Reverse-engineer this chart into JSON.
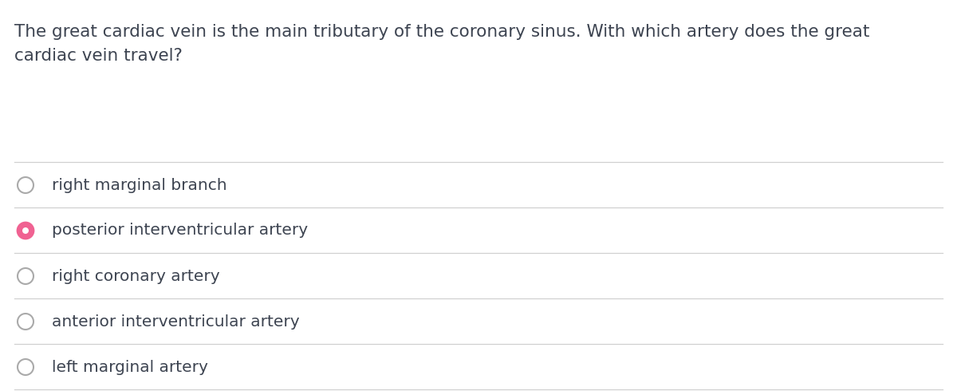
{
  "question": "The great cardiac vein is the main tributary of the coronary sinus. With which artery does the great\ncardiac vein travel?",
  "options": [
    "right marginal branch",
    "posterior interventricular artery",
    "right coronary artery",
    "anterior interventricular artery",
    "left marginal artery"
  ],
  "selected_index": 1,
  "background_color": "#ffffff",
  "text_color": "#3d4451",
  "divider_color": "#d0d0d0",
  "unselected_circle_color": "#ffffff",
  "unselected_circle_edge": "#aaaaaa",
  "selected_circle_fill": "#f06292",
  "selected_circle_edge": "#f06292",
  "selected_inner_fill": "#ffffff",
  "question_fontsize": 15.5,
  "option_fontsize": 14.5,
  "fig_width": 12.0,
  "fig_height": 4.9
}
